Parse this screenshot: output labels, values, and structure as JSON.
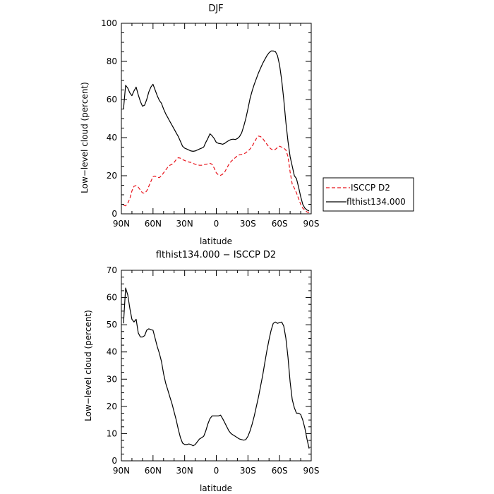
{
  "chart_data": [
    {
      "type": "line",
      "title": "DJF",
      "xlabel": "latitude",
      "ylabel": "Low−level cloud (percent)",
      "xlim": [
        90,
        -90
      ],
      "ylim": [
        0,
        100
      ],
      "xticks": [
        90,
        60,
        30,
        0,
        -30,
        -60,
        -90
      ],
      "xticklabels": [
        "90N",
        "60N",
        "30N",
        "0",
        "30S",
        "60S",
        "90S"
      ],
      "yticks": [
        0,
        20,
        40,
        60,
        80,
        100
      ],
      "legend": {
        "placement": "outside-right",
        "entries": [
          "ISCCP D2",
          "flthist134.000"
        ]
      },
      "series": [
        {
          "name": "ISCCP D2",
          "color": "#e8141c",
          "style": "dashed",
          "x": [
            88,
            86,
            84,
            82,
            80,
            78,
            76,
            74,
            72,
            70,
            68,
            66,
            64,
            62,
            60,
            58,
            56,
            54,
            52,
            50,
            48,
            46,
            44,
            42,
            40,
            38,
            36,
            34,
            32,
            30,
            28,
            26,
            24,
            22,
            20,
            18,
            16,
            14,
            12,
            10,
            8,
            6,
            4,
            2,
            0,
            -2,
            -4,
            -6,
            -8,
            -10,
            -12,
            -14,
            -16,
            -18,
            -20,
            -22,
            -24,
            -26,
            -28,
            -30,
            -32,
            -34,
            -36,
            -38,
            -40,
            -42,
            -44,
            -46,
            -48,
            -50,
            -52,
            -54,
            -56,
            -58,
            -60,
            -62,
            -64,
            -66,
            -68,
            -70,
            -72,
            -74,
            -76,
            -78,
            -80,
            -82,
            -84,
            -86,
            -88
          ],
          "values": [
            4.5,
            4.2,
            5.5,
            8.0,
            12.0,
            14.5,
            14.8,
            14.0,
            12.5,
            11.0,
            10.8,
            12.0,
            14.5,
            17.0,
            19.5,
            19.8,
            19.2,
            19.0,
            20.0,
            21.5,
            23.0,
            24.5,
            25.5,
            26.0,
            27.0,
            28.5,
            29.5,
            29.2,
            28.5,
            28.0,
            27.5,
            27.2,
            27.0,
            26.5,
            26.0,
            25.8,
            25.5,
            25.5,
            25.8,
            26.0,
            26.2,
            26.5,
            26.0,
            24.0,
            21.5,
            20.5,
            20.2,
            20.8,
            22.0,
            24.0,
            26.0,
            27.5,
            28.5,
            29.5,
            30.5,
            31.0,
            31.2,
            31.5,
            32.0,
            33.0,
            34.0,
            35.5,
            37.5,
            39.5,
            40.8,
            40.5,
            39.5,
            38.0,
            36.5,
            35.0,
            34.0,
            33.5,
            33.8,
            34.8,
            35.5,
            35.0,
            34.5,
            33.5,
            30.0,
            22.0,
            15.5,
            13.5,
            11.0,
            8.0,
            5.0,
            3.0,
            2.0,
            1.0,
            0.5
          ]
        },
        {
          "name": "flthist134.000",
          "color": "#000000",
          "style": "solid",
          "x": [
            88,
            86,
            84,
            82,
            80,
            78,
            76,
            74,
            72,
            70,
            68,
            66,
            64,
            62,
            60,
            58,
            56,
            54,
            52,
            50,
            48,
            46,
            44,
            42,
            40,
            38,
            36,
            34,
            32,
            30,
            28,
            26,
            24,
            22,
            20,
            18,
            16,
            14,
            12,
            10,
            8,
            6,
            4,
            2,
            0,
            -2,
            -4,
            -6,
            -8,
            -10,
            -12,
            -14,
            -16,
            -18,
            -20,
            -22,
            -24,
            -26,
            -28,
            -30,
            -32,
            -34,
            -36,
            -38,
            -40,
            -42,
            -44,
            -46,
            -48,
            -50,
            -52,
            -54,
            -56,
            -58,
            -60,
            -62,
            -64,
            -66,
            -68,
            -70,
            -72,
            -74,
            -76,
            -78,
            -80,
            -82,
            -84,
            -86,
            -88
          ],
          "values": [
            55.0,
            67.5,
            66.0,
            63.5,
            62.0,
            64.5,
            66.5,
            62.5,
            59.0,
            56.5,
            57.0,
            60.0,
            64.0,
            66.5,
            68.0,
            65.0,
            62.0,
            59.5,
            58.0,
            55.0,
            52.5,
            50.5,
            48.5,
            46.5,
            44.5,
            42.5,
            40.5,
            38.0,
            35.5,
            34.5,
            34.0,
            33.5,
            33.0,
            32.8,
            33.0,
            33.5,
            34.0,
            34.5,
            35.0,
            37.5,
            39.5,
            42.0,
            41.0,
            39.5,
            37.5,
            37.0,
            36.8,
            36.5,
            37.0,
            37.8,
            38.5,
            39.0,
            39.2,
            39.0,
            39.5,
            40.5,
            42.5,
            46.0,
            50.0,
            55.0,
            60.5,
            64.5,
            68.0,
            71.0,
            74.0,
            76.5,
            79.0,
            81.0,
            83.0,
            84.5,
            85.5,
            85.5,
            85.2,
            83.0,
            78.0,
            70.0,
            60.0,
            48.0,
            38.0,
            30.0,
            25.0,
            20.0,
            18.5,
            14.0,
            9.0,
            5.0,
            3.0,
            2.0,
            1.5
          ]
        }
      ]
    },
    {
      "type": "line",
      "title": "flthist134.000 − ISCCP D2",
      "xlabel": "latitude",
      "ylabel": "Low−level cloud (percent)",
      "xlim": [
        90,
        -90
      ],
      "ylim": [
        0,
        70
      ],
      "xticks": [
        90,
        60,
        30,
        0,
        -30,
        -60,
        -90
      ],
      "xticklabels": [
        "90N",
        "60N",
        "30N",
        "0",
        "30S",
        "60S",
        "90S"
      ],
      "yticks": [
        0,
        10,
        20,
        30,
        40,
        50,
        60,
        70
      ],
      "series": [
        {
          "color": "#000000",
          "style": "solid",
          "x": [
            88,
            86,
            84,
            82,
            80,
            78,
            76,
            74,
            72,
            70,
            68,
            66,
            64,
            62,
            60,
            58,
            56,
            54,
            52,
            50,
            48,
            46,
            44,
            42,
            40,
            38,
            36,
            34,
            32,
            30,
            28,
            26,
            24,
            22,
            20,
            18,
            16,
            14,
            12,
            10,
            8,
            6,
            4,
            2,
            0,
            -2,
            -4,
            -6,
            -8,
            -10,
            -12,
            -14,
            -16,
            -18,
            -20,
            -22,
            -24,
            -26,
            -28,
            -30,
            -32,
            -34,
            -36,
            -38,
            -40,
            -42,
            -44,
            -46,
            -48,
            -50,
            -52,
            -54,
            -56,
            -58,
            -60,
            -62,
            -64,
            -66,
            -68,
            -70,
            -72,
            -74,
            -76,
            -78,
            -80,
            -82,
            -84,
            -86,
            -88
          ],
          "values": [
            50.5,
            63.5,
            61.0,
            56.0,
            52.0,
            51.0,
            52.0,
            47.0,
            45.5,
            45.5,
            46.0,
            48.0,
            48.5,
            48.2,
            48.0,
            45.0,
            42.0,
            39.5,
            36.5,
            32.0,
            28.5,
            26.0,
            23.5,
            21.0,
            18.0,
            15.0,
            11.5,
            8.5,
            6.5,
            6.0,
            6.0,
            6.2,
            6.0,
            5.5,
            6.0,
            7.0,
            8.0,
            8.5,
            9.0,
            11.0,
            13.5,
            15.5,
            16.5,
            16.5,
            16.5,
            16.5,
            16.8,
            15.5,
            14.0,
            12.5,
            11.0,
            10.0,
            9.5,
            9.0,
            8.5,
            8.0,
            7.8,
            7.6,
            7.8,
            9.0,
            11.0,
            13.5,
            16.5,
            20.0,
            23.5,
            27.5,
            31.5,
            36.0,
            40.5,
            44.5,
            48.0,
            50.5,
            51.0,
            50.5,
            50.8,
            51.0,
            49.5,
            45.0,
            38.0,
            29.0,
            22.5,
            19.5,
            17.5,
            17.5,
            17.0,
            15.0,
            12.0,
            8.0,
            4.5
          ]
        }
      ]
    }
  ]
}
